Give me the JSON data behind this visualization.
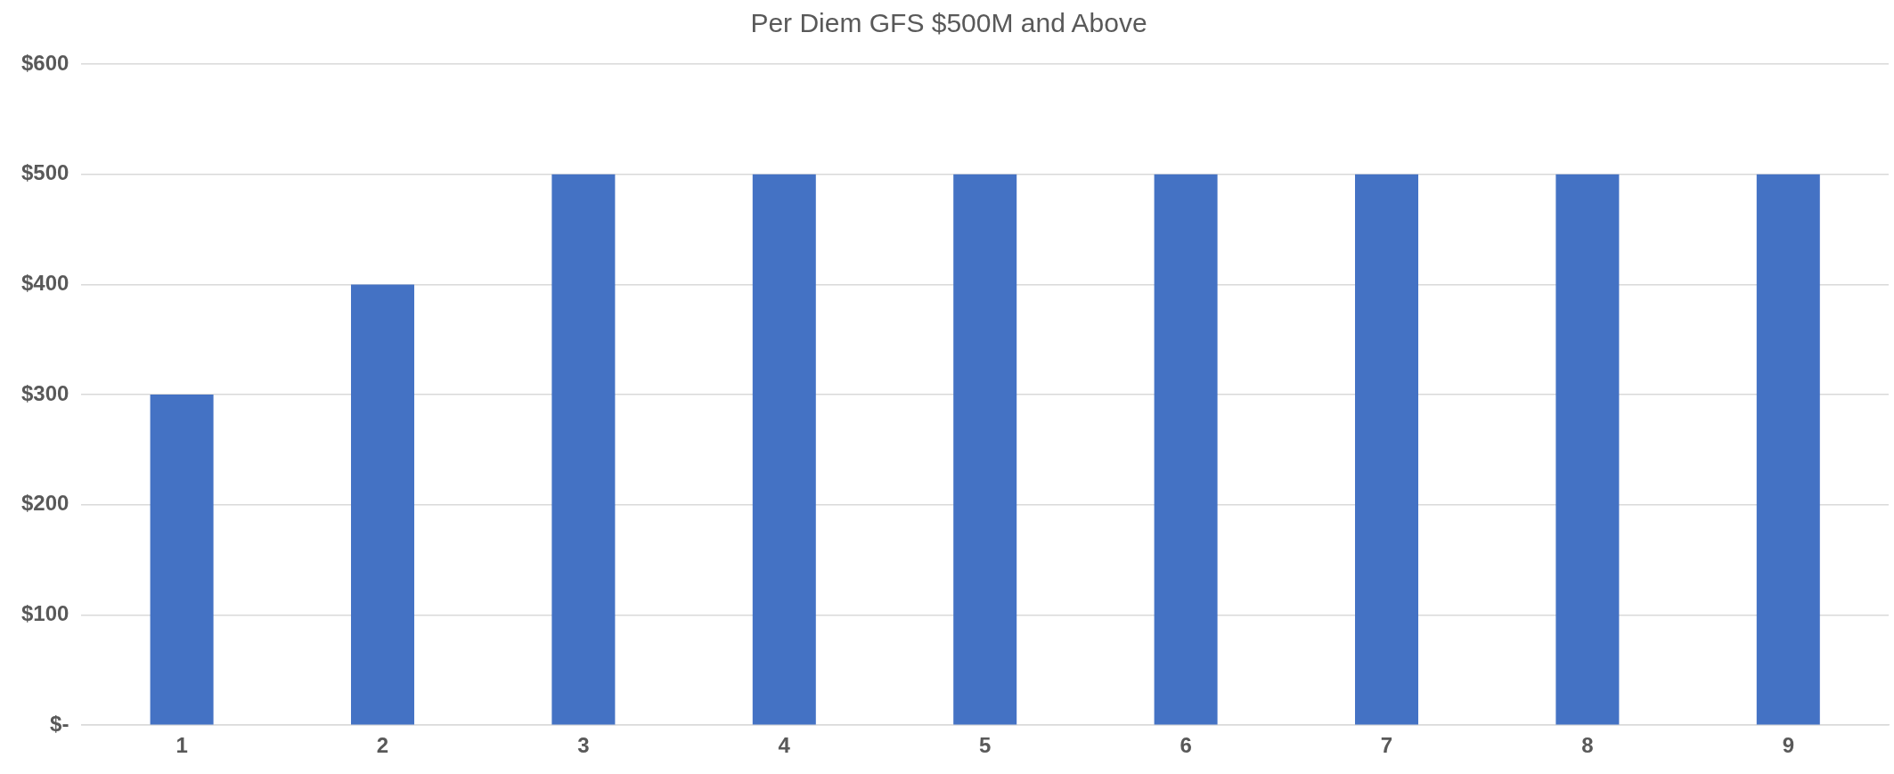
{
  "chart_data": {
    "type": "bar",
    "title": "Per Diem GFS $500M and Above",
    "categories": [
      "1",
      "2",
      "3",
      "4",
      "5",
      "6",
      "7",
      "8",
      "9"
    ],
    "values": [
      300,
      400,
      500,
      500,
      500,
      500,
      500,
      500,
      500
    ],
    "color": "#4472c4",
    "ylim": [
      0,
      600
    ],
    "yticks": [
      {
        "value": 0,
        "label": "$-"
      },
      {
        "value": 100,
        "label": "$100"
      },
      {
        "value": 200,
        "label": "$200"
      },
      {
        "value": 300,
        "label": "$300"
      },
      {
        "value": 400,
        "label": "$400"
      },
      {
        "value": 500,
        "label": "$500"
      },
      {
        "value": 600,
        "label": "$600"
      }
    ],
    "grid": "y",
    "legend": false
  }
}
